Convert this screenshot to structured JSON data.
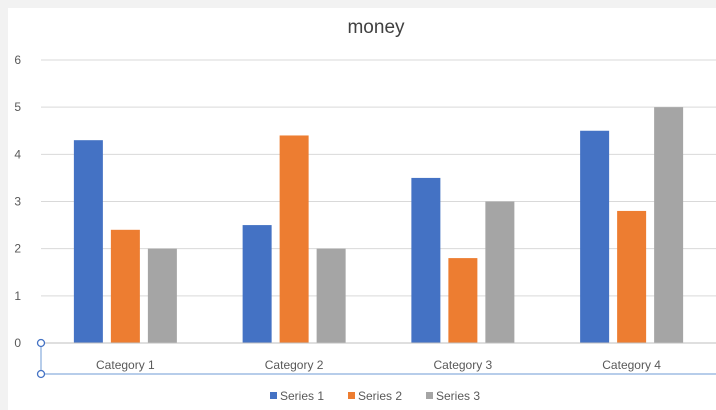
{
  "chart_data": {
    "type": "bar",
    "title": "money",
    "categories": [
      "Category 1",
      "Category 2",
      "Category 3",
      "Category 4"
    ],
    "series": [
      {
        "name": "Series 1",
        "color": "#4472c4",
        "values": [
          4.3,
          2.5,
          3.5,
          4.5
        ]
      },
      {
        "name": "Series 2",
        "color": "#ed7d31",
        "values": [
          2.4,
          4.4,
          1.8,
          2.8
        ]
      },
      {
        "name": "Series 3",
        "color": "#a5a5a5",
        "values": [
          2.0,
          2.0,
          3.0,
          5.0
        ]
      }
    ],
    "ylim": [
      0,
      6
    ],
    "yticks": [
      "0",
      "1",
      "2",
      "3",
      "4",
      "5",
      "6"
    ],
    "grid": true,
    "legend": "bottom"
  }
}
